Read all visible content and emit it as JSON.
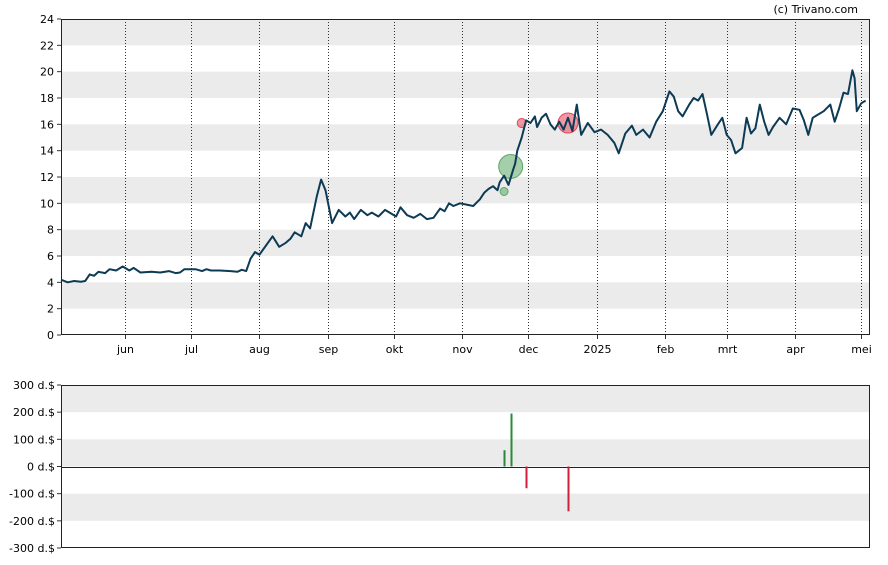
{
  "credit": "(c) Trivano.com",
  "chart_data": [
    {
      "type": "line",
      "title": "",
      "xlabel": "",
      "ylabel": "",
      "ylim": [
        0,
        24
      ],
      "yticks": [
        0,
        2,
        4,
        6,
        8,
        10,
        12,
        14,
        16,
        18,
        20,
        22,
        24
      ],
      "xlim": [
        "2024-05-03",
        "2025-05-05"
      ],
      "xticks": [
        {
          "date": "2024-06-01",
          "label": "jun"
        },
        {
          "date": "2024-07-01",
          "label": "jul"
        },
        {
          "date": "2024-08-01",
          "label": "aug"
        },
        {
          "date": "2024-09-01",
          "label": "sep"
        },
        {
          "date": "2024-10-01",
          "label": "okt"
        },
        {
          "date": "2024-11-01",
          "label": "nov"
        },
        {
          "date": "2024-12-01",
          "label": "dec"
        },
        {
          "date": "2025-01-01",
          "label": "2025"
        },
        {
          "date": "2025-02-01",
          "label": "feb"
        },
        {
          "date": "2025-03-01",
          "label": "mrt"
        },
        {
          "date": "2025-04-01",
          "label": "apr"
        },
        {
          "date": "2025-05-01",
          "label": "mei"
        }
      ],
      "grid": "alternating horizontal bands, dotted vertical lines at month starts",
      "series": [
        {
          "color": "#0d3a55",
          "points": [
            [
              "2024-05-03",
              4.2
            ],
            [
              "2024-05-06",
              4.0
            ],
            [
              "2024-05-09",
              4.1
            ],
            [
              "2024-05-12",
              4.05
            ],
            [
              "2024-05-14",
              4.1
            ],
            [
              "2024-05-16",
              4.6
            ],
            [
              "2024-05-18",
              4.5
            ],
            [
              "2024-05-20",
              4.8
            ],
            [
              "2024-05-23",
              4.7
            ],
            [
              "2024-05-25",
              5.0
            ],
            [
              "2024-05-28",
              4.9
            ],
            [
              "2024-05-31",
              5.2
            ],
            [
              "2024-06-03",
              4.9
            ],
            [
              "2024-06-05",
              5.1
            ],
            [
              "2024-06-08",
              4.75
            ],
            [
              "2024-06-13",
              4.8
            ],
            [
              "2024-06-17",
              4.75
            ],
            [
              "2024-06-21",
              4.85
            ],
            [
              "2024-06-24",
              4.7
            ],
            [
              "2024-06-26",
              4.75
            ],
            [
              "2024-06-28",
              5.0
            ],
            [
              "2024-07-03",
              5.0
            ],
            [
              "2024-07-06",
              4.85
            ],
            [
              "2024-07-08",
              5.0
            ],
            [
              "2024-07-10",
              4.9
            ],
            [
              "2024-07-14",
              4.9
            ],
            [
              "2024-07-19",
              4.85
            ],
            [
              "2024-07-22",
              4.8
            ],
            [
              "2024-07-24",
              4.95
            ],
            [
              "2024-07-26",
              4.85
            ],
            [
              "2024-07-28",
              5.8
            ],
            [
              "2024-07-30",
              6.3
            ],
            [
              "2024-08-01",
              6.1
            ],
            [
              "2024-08-04",
              6.8
            ],
            [
              "2024-08-07",
              7.5
            ],
            [
              "2024-08-10",
              6.7
            ],
            [
              "2024-08-13",
              7.0
            ],
            [
              "2024-08-15",
              7.3
            ],
            [
              "2024-08-17",
              7.8
            ],
            [
              "2024-08-20",
              7.5
            ],
            [
              "2024-08-22",
              8.5
            ],
            [
              "2024-08-24",
              8.1
            ],
            [
              "2024-08-27",
              10.5
            ],
            [
              "2024-08-29",
              11.8
            ],
            [
              "2024-08-31",
              11.0
            ],
            [
              "2024-09-03",
              8.5
            ],
            [
              "2024-09-06",
              9.5
            ],
            [
              "2024-09-09",
              9.0
            ],
            [
              "2024-09-11",
              9.3
            ],
            [
              "2024-09-13",
              8.8
            ],
            [
              "2024-09-16",
              9.5
            ],
            [
              "2024-09-19",
              9.1
            ],
            [
              "2024-09-21",
              9.3
            ],
            [
              "2024-09-24",
              9.0
            ],
            [
              "2024-09-27",
              9.5
            ],
            [
              "2024-09-30",
              9.2
            ],
            [
              "2024-10-02",
              9.0
            ],
            [
              "2024-10-04",
              9.7
            ],
            [
              "2024-10-07",
              9.1
            ],
            [
              "2024-10-10",
              8.9
            ],
            [
              "2024-10-13",
              9.2
            ],
            [
              "2024-10-16",
              8.8
            ],
            [
              "2024-10-19",
              8.9
            ],
            [
              "2024-10-22",
              9.6
            ],
            [
              "2024-10-24",
              9.4
            ],
            [
              "2024-10-26",
              10.0
            ],
            [
              "2024-10-28",
              9.8
            ],
            [
              "2024-10-31",
              10.0
            ],
            [
              "2024-11-03",
              9.9
            ],
            [
              "2024-11-06",
              9.8
            ],
            [
              "2024-11-09",
              10.3
            ],
            [
              "2024-11-11",
              10.8
            ],
            [
              "2024-11-13",
              11.1
            ],
            [
              "2024-11-15",
              11.3
            ],
            [
              "2024-11-17",
              11.0
            ],
            [
              "2024-11-18",
              11.6
            ],
            [
              "2024-11-20",
              12.1
            ],
            [
              "2024-11-22",
              11.4
            ],
            [
              "2024-11-24",
              12.5
            ],
            [
              "2024-11-25",
              13.0
            ],
            [
              "2024-11-26",
              14.0
            ],
            [
              "2024-11-28",
              15.0
            ],
            [
              "2024-11-30",
              16.3
            ],
            [
              "2024-12-02",
              16.1
            ],
            [
              "2024-12-04",
              16.6
            ],
            [
              "2024-12-05",
              15.8
            ],
            [
              "2024-12-07",
              16.5
            ],
            [
              "2024-12-09",
              16.8
            ],
            [
              "2024-12-11",
              16.0
            ],
            [
              "2024-12-13",
              15.6
            ],
            [
              "2024-12-15",
              16.2
            ],
            [
              "2024-12-17",
              15.6
            ],
            [
              "2024-12-19",
              16.5
            ],
            [
              "2024-12-21",
              15.5
            ],
            [
              "2024-12-23",
              17.5
            ],
            [
              "2024-12-25",
              15.2
            ],
            [
              "2024-12-28",
              16.1
            ],
            [
              "2024-12-31",
              15.4
            ],
            [
              "2025-01-03",
              15.6
            ],
            [
              "2025-01-06",
              15.2
            ],
            [
              "2025-01-09",
              14.6
            ],
            [
              "2025-01-11",
              13.8
            ],
            [
              "2025-01-14",
              15.3
            ],
            [
              "2025-01-17",
              15.9
            ],
            [
              "2025-01-19",
              15.2
            ],
            [
              "2025-01-22",
              15.6
            ],
            [
              "2025-01-25",
              15.0
            ],
            [
              "2025-01-28",
              16.2
            ],
            [
              "2025-01-31",
              17.0
            ],
            [
              "2025-02-03",
              18.5
            ],
            [
              "2025-02-05",
              18.1
            ],
            [
              "2025-02-07",
              17.0
            ],
            [
              "2025-02-09",
              16.6
            ],
            [
              "2025-02-12",
              17.5
            ],
            [
              "2025-02-14",
              18.0
            ],
            [
              "2025-02-16",
              17.8
            ],
            [
              "2025-02-18",
              18.3
            ],
            [
              "2025-02-20",
              16.8
            ],
            [
              "2025-02-22",
              15.2
            ],
            [
              "2025-02-25",
              16.0
            ],
            [
              "2025-02-27",
              16.5
            ],
            [
              "2025-03-01",
              15.2
            ],
            [
              "2025-03-03",
              14.8
            ],
            [
              "2025-03-05",
              13.8
            ],
            [
              "2025-03-08",
              14.2
            ],
            [
              "2025-03-10",
              16.5
            ],
            [
              "2025-03-12",
              15.3
            ],
            [
              "2025-03-14",
              15.7
            ],
            [
              "2025-03-16",
              17.5
            ],
            [
              "2025-03-18",
              16.2
            ],
            [
              "2025-03-20",
              15.2
            ],
            [
              "2025-03-22",
              15.8
            ],
            [
              "2025-03-25",
              16.5
            ],
            [
              "2025-03-28",
              16.0
            ],
            [
              "2025-03-31",
              17.2
            ],
            [
              "2025-04-03",
              17.1
            ],
            [
              "2025-04-05",
              16.3
            ],
            [
              "2025-04-07",
              15.2
            ],
            [
              "2025-04-09",
              16.5
            ],
            [
              "2025-04-11",
              16.7
            ],
            [
              "2025-04-14",
              17.0
            ],
            [
              "2025-04-17",
              17.5
            ],
            [
              "2025-04-19",
              16.2
            ],
            [
              "2025-04-21",
              17.2
            ],
            [
              "2025-04-23",
              18.4
            ],
            [
              "2025-04-25",
              18.3
            ],
            [
              "2025-04-27",
              20.1
            ],
            [
              "2025-04-28",
              19.5
            ],
            [
              "2025-04-29",
              17.0
            ],
            [
              "2025-05-01",
              17.6
            ],
            [
              "2025-05-03",
              17.8
            ]
          ]
        }
      ],
      "markers": [
        {
          "date": "2024-11-20",
          "value": 10.9,
          "type": "buy",
          "size": 4,
          "color": "#5aa864"
        },
        {
          "date": "2024-11-23",
          "value": 12.8,
          "type": "buy",
          "size": 12,
          "color": "#5aa864"
        },
        {
          "date": "2024-11-28",
          "value": 16.1,
          "type": "sell",
          "size": 4.5,
          "color": "#e0465a"
        },
        {
          "date": "2024-12-19",
          "value": 16.1,
          "type": "sell",
          "size": 10,
          "color": "#e0465a"
        }
      ]
    },
    {
      "type": "bar",
      "title": "",
      "ylim": [
        -300,
        300
      ],
      "yticks": [
        {
          "value": 300,
          "label": "300 d.$"
        },
        {
          "value": 200,
          "label": "200 d.$"
        },
        {
          "value": 100,
          "label": "100 d.$"
        },
        {
          "value": 0,
          "label": "0 d.$"
        },
        {
          "value": -100,
          "label": "-100 d.$"
        },
        {
          "value": -200,
          "label": "-200 d.$"
        },
        {
          "value": -300,
          "label": "-300 d.$"
        }
      ],
      "bars": [
        {
          "date": "2024-11-20",
          "value": 60,
          "color": "#2a8a3a"
        },
        {
          "date": "2024-11-23",
          "value": 195,
          "color": "#2a8a3a"
        },
        {
          "date": "2024-11-30",
          "value": -80,
          "color": "#d01f3c"
        },
        {
          "date": "2024-12-19",
          "value": -165,
          "color": "#d01f3c"
        }
      ]
    }
  ]
}
